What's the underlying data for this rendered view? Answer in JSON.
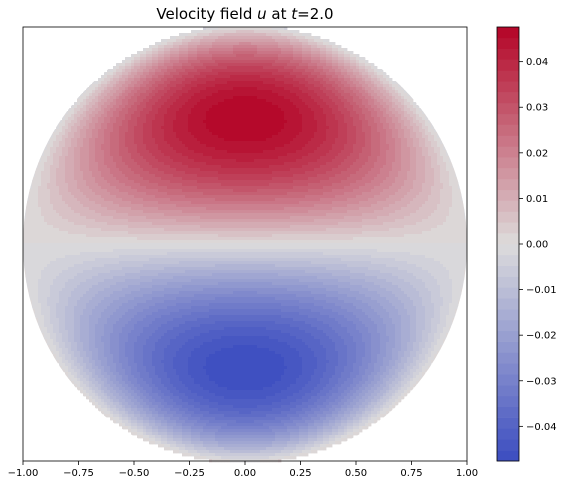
{
  "chart_data": {
    "type": "heatmap",
    "title": {
      "prefix": "Velocity field ",
      "var": "u",
      "middle": " at ",
      "tvar": "t",
      "suffix": "=2.0"
    },
    "xlabel": "",
    "ylabel": "",
    "xlim": [
      -1.0,
      1.0
    ],
    "ylim": [
      -1.0,
      1.0
    ],
    "x_ticks": [
      -1.0,
      -0.75,
      -0.5,
      -0.25,
      0.0,
      0.25,
      0.5,
      0.75,
      1.0
    ],
    "x_tick_labels": [
      "−1.00",
      "−0.75",
      "−0.50",
      "−0.25",
      "0.00",
      "0.25",
      "0.50",
      "0.75",
      "1.00"
    ],
    "domain": "unit disk",
    "field": "u = A * y * (1 - x^2 - y^2) * sqrt(3)",
    "amplitude": 0.0476,
    "max_value": 0.0476,
    "max_location": [
      0.0,
      0.58
    ],
    "min_value": -0.0476,
    "min_location": [
      0.0,
      -0.58
    ],
    "levels": 40,
    "colormap": "coolwarm",
    "colormap_stops": [
      "#3b4cc0",
      "#dddcdc",
      "#b40426"
    ],
    "colorbar": {
      "vmin": -0.0476,
      "vmax": 0.0476,
      "ticks": [
        -0.04,
        -0.03,
        -0.02,
        -0.01,
        0.0,
        0.01,
        0.02,
        0.03,
        0.04
      ],
      "tick_labels": [
        "−0.04",
        "−0.03",
        "−0.02",
        "−0.01",
        "0.00",
        "0.01",
        "0.02",
        "0.03",
        "0.04"
      ]
    },
    "grid": false
  }
}
